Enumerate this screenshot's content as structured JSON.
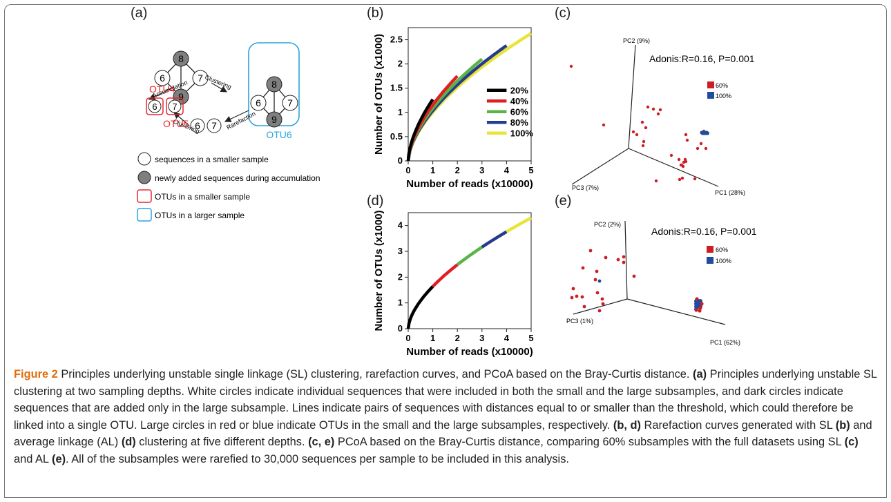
{
  "panels": {
    "a": {
      "label": "(a)",
      "nodes": {
        "n6": "6",
        "n7": "7",
        "n8": "8",
        "n9": "9"
      },
      "arrows": {
        "accumulation": "Accumulation",
        "clustering": "Clustering",
        "rarefaction": "Rarefaction"
      },
      "otus": {
        "otu4": "OTU4",
        "otu5": "OTU5",
        "otu6": "OTU6"
      },
      "legend": [
        "sequences in a smaller sample",
        "newly added sequences during accumulation",
        "OTUs in a smaller sample",
        "OTUs in a larger sample"
      ],
      "colors": {
        "red": "#e8262b",
        "blue": "#29a3dc",
        "gray": "#7f7f7f"
      }
    },
    "b": {
      "label": "(b)"
    },
    "c": {
      "label": "(c)"
    },
    "d": {
      "label": "(d)"
    },
    "e": {
      "label": "(e)"
    }
  },
  "chart_data": [
    {
      "id": "b",
      "type": "line",
      "xlabel": "Number of reads (x10000)",
      "ylabel": "Number of OTUs (x1000)",
      "xlim": [
        0,
        5
      ],
      "ylim": [
        0,
        2.75
      ],
      "xticks": [
        "0",
        "1",
        "2",
        "3",
        "4",
        "5"
      ],
      "yticks": [
        "0",
        "0.5",
        "1",
        "1.5",
        "2",
        "2.5"
      ],
      "legend_position": "center-right",
      "series": [
        {
          "name": "20%",
          "color": "#000000",
          "x_end": 1,
          "y_end": 1.27
        },
        {
          "name": "40%",
          "color": "#e01e24",
          "x_end": 2,
          "y_end": 1.75
        },
        {
          "name": "60%",
          "color": "#5ab345",
          "x_end": 3,
          "y_end": 2.1
        },
        {
          "name": "80%",
          "color": "#263b8e",
          "x_end": 4,
          "y_end": 2.38
        },
        {
          "name": "100%",
          "color": "#e9e43a",
          "x_end": 5,
          "y_end": 2.63
        }
      ]
    },
    {
      "id": "d",
      "type": "line",
      "xlabel": "Number of reads (x10000)",
      "ylabel": "Number of OTUs (x1000)",
      "xlim": [
        0,
        5
      ],
      "ylim": [
        0,
        4.5
      ],
      "xticks": [
        "0",
        "1",
        "2",
        "3",
        "4",
        "5"
      ],
      "yticks": [
        "0",
        "1",
        "2",
        "3",
        "4"
      ],
      "segments": [
        {
          "from": 0,
          "to": 1,
          "color": "#000000"
        },
        {
          "from": 1,
          "to": 2,
          "color": "#e01e24"
        },
        {
          "from": 2,
          "to": 3,
          "color": "#5ab345"
        },
        {
          "from": 3,
          "to": 4,
          "color": "#263b8e"
        },
        {
          "from": 4,
          "to": 5,
          "color": "#e9e43a"
        }
      ],
      "y_at_5": 4.3
    },
    {
      "id": "c",
      "type": "scatter",
      "axes": [
        "PC1 (28%)",
        "PC2 (9%)",
        "PC3 (7%)"
      ],
      "annotation": "Adonis:R=0.16, P=0.001",
      "legend": [
        {
          "name": "60%",
          "color": "#cc1e24"
        },
        {
          "name": "100%",
          "color": "#1f4c9e"
        }
      ]
    },
    {
      "id": "e",
      "type": "scatter",
      "axes": [
        "PC1 (62%)",
        "PC2 (2%)",
        "PC3 (1%)"
      ],
      "annotation": "Adonis:R=0.16, P=0.001",
      "legend": [
        {
          "name": "60%",
          "color": "#cc1e24"
        },
        {
          "name": "100%",
          "color": "#1f4c9e"
        }
      ]
    }
  ],
  "caption": {
    "figure_label": "Figure 2",
    "title": " Principles underlying unstable single linkage (SL) clustering, rarefaction curves, and PCoA based on the Bray-Curtis distance. ",
    "a_ref": "(a)",
    "a_text": " Principles underlying unstable SL clustering at two sampling depths. White circles indicate individual sequences that were included in both the small and the large subsamples, and dark circles indicate sequences that are added only in the large subsample. Lines indicate pairs of sequences with distances equal to or smaller than the threshold, which could therefore be linked into a single OTU. Large circles in red or blue indicate OTUs in the small and the large subsamples, respectively. ",
    "bd_ref": "(b, d)",
    "bd_text1": " Rarefaction curves generated with SL ",
    "b_ref": "(b)",
    "bd_text2": " and average linkage (AL) ",
    "d_ref": "(d)",
    "bd_text3": " clustering at five different depths. ",
    "ce_ref": "(c, e)",
    "ce_text1": " PCoA based on the Bray-Curtis distance, comparing 60% subsamples with the full datasets using SL ",
    "c_ref": "(c)",
    "ce_text2": " and AL ",
    "e_ref": "(e)",
    "ce_text3": ". All of the subsamples were rarefied to 30,000 sequences per sample to be included in this analysis."
  }
}
